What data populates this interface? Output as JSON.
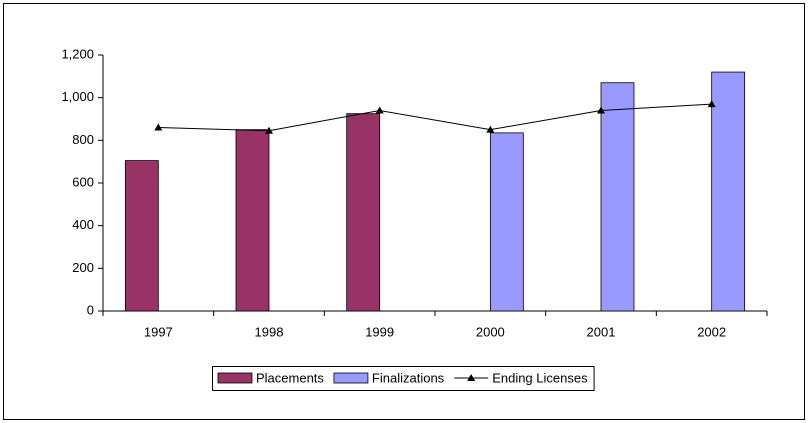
{
  "chart_data": {
    "type": "bar",
    "categories": [
      "1997",
      "1998",
      "1999",
      "2000",
      "2001",
      "2002"
    ],
    "series": [
      {
        "name": "Placements",
        "type": "bar",
        "color": "#993366",
        "values": [
          705,
          850,
          925,
          null,
          null,
          null
        ]
      },
      {
        "name": "Finalizations",
        "type": "bar",
        "color": "#9999ff",
        "values": [
          null,
          null,
          null,
          835,
          1070,
          1120
        ]
      },
      {
        "name": "Ending Licenses",
        "type": "line",
        "color": "#000000",
        "values": [
          860,
          845,
          940,
          850,
          940,
          970
        ]
      }
    ],
    "ylim": [
      0,
      1200
    ],
    "yticks": [
      0,
      200,
      400,
      600,
      800,
      {
        "value": 1000,
        "label": "1,000"
      },
      {
        "value": 1200,
        "label": "1,200"
      }
    ],
    "grid": false,
    "legend": "bottom"
  }
}
